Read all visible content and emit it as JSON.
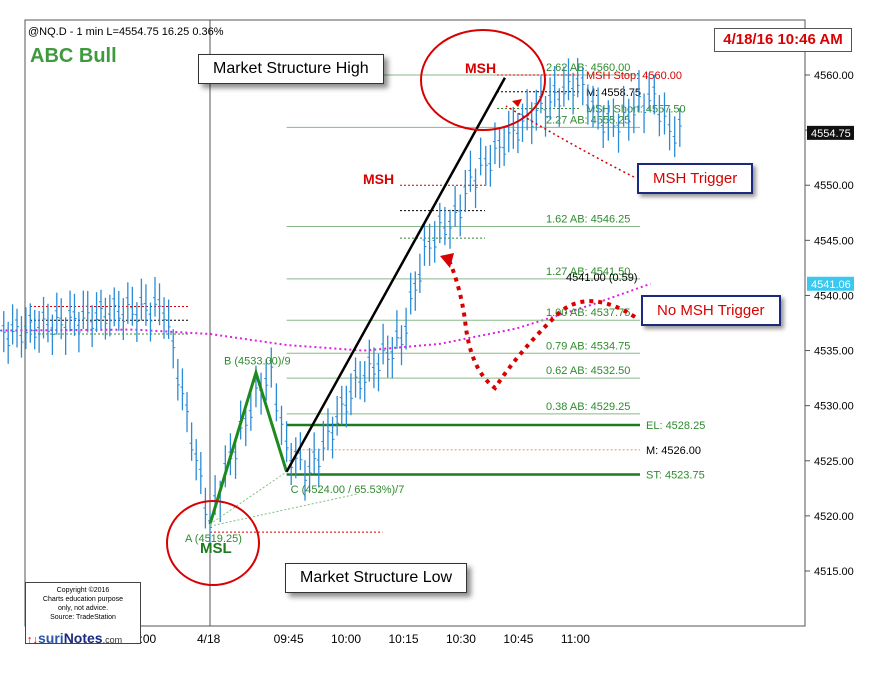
{
  "header": {
    "symbol_line": "@NQ.D - 1 min  L=4554.75  16.25   0.36%",
    "title": "ABC Bull",
    "date": "4/18/16 10:46 AM"
  },
  "callouts": {
    "msh_high": "Market Structure High",
    "msl_low": "Market Structure Low",
    "msh_trigger": "MSH Trigger",
    "no_msh_trigger": "No MSH Trigger"
  },
  "copyright": {
    "line1": "Copyright ©2016",
    "line2": "Charts education purpose",
    "line3": "only, not advice.",
    "line4": "Source: TradeStation",
    "logo_prefix": "suri",
    "logo_name": "Notes",
    "logo_suffix": ".com"
  },
  "colors": {
    "price_bar": "#2b8bd6",
    "green": "#2e8b2e",
    "red": "#d80000",
    "magenta": "#e020e0",
    "black": "#000000",
    "gray_line": "#8ab88a"
  },
  "chart_data": {
    "type": "line",
    "title": "ABC Bull",
    "ylim": [
      4511.0,
      4562.5
    ],
    "y_ticks": [
      4515.0,
      4520.0,
      4525.0,
      4530.0,
      4535.0,
      4540.0,
      4545.0,
      4550.0,
      4555.0,
      4560.0
    ],
    "y_tick_labels": [
      "4515.00",
      "4520.00",
      "4525.00",
      "4530.00",
      "4535.00",
      "4540.00",
      "4545.00",
      "4550.00",
      "4555.00",
      "4560.00"
    ],
    "x_tick_labels": [
      ":00",
      "4/18",
      "09:45",
      "10:00",
      "10:15",
      "10:30",
      "10:45",
      "11:00"
    ],
    "last_price": "4554.75",
    "ma_value": "4541.06",
    "price_series": {
      "name": "@NQ.D - 1 min",
      "x_minutes": [
        -90,
        -70,
        -55,
        -40,
        -25,
        -12,
        0,
        4,
        8,
        12,
        16,
        20,
        26,
        32,
        38,
        44,
        50,
        56,
        60,
        64,
        68,
        72,
        78,
        84,
        90,
        96,
        100,
        104,
        108,
        112,
        116,
        120,
        124
      ],
      "values": [
        4538.0,
        4537.0,
        4536.5,
        4537.5,
        4538.5,
        4539.0,
        4519.25,
        4524.0,
        4527.5,
        4531.0,
        4533.0,
        4526.0,
        4524.0,
        4528.0,
        4532.0,
        4534.0,
        4536.0,
        4544.0,
        4546.0,
        4547.0,
        4550.5,
        4552.0,
        4554.5,
        4556.5,
        4558.0,
        4559.5,
        4557.0,
        4555.5,
        4556.0,
        4557.5,
        4558.0,
        4555.0,
        4554.75
      ]
    },
    "moving_average": {
      "x_minutes": [
        -150,
        -100,
        -60,
        -20,
        0,
        20,
        40,
        60,
        80,
        100,
        115
      ],
      "values": [
        4536.0,
        4536.5,
        4536.8,
        4536.9,
        4536.5,
        4535.5,
        4535.0,
        4535.6,
        4537.0,
        4539.2,
        4541.06
      ]
    },
    "abc_points": [
      {
        "label": "A (4519.25)",
        "x": 0,
        "y": 4519.25
      },
      {
        "label": "B (4533.00)/9",
        "x": 12,
        "y": 4533.0
      },
      {
        "label": "C (4524.00 / 65.53%)/7",
        "x": 20,
        "y": 4524.0
      }
    ],
    "trend_line": {
      "from": {
        "x": 20,
        "y": 4524.0
      },
      "to": {
        "x": 77,
        "y": 4559.75
      }
    },
    "fib_levels": [
      {
        "label": "2.62 AB: 4560.00",
        "value": 4560.0
      },
      {
        "label": "2.27 AB: 4555.25",
        "value": 4555.25
      },
      {
        "label": "1.62 AB: 4546.25",
        "value": 4546.25
      },
      {
        "label": "1.27 AB: 4541.50",
        "value": 4541.5
      },
      {
        "label": "1.00 AB: 4537.75",
        "value": 4537.75
      },
      {
        "label": "0.79 AB: 4534.75",
        "value": 4534.75
      },
      {
        "label": "0.62 AB: 4532.50",
        "value": 4532.5
      },
      {
        "label": "0.38 AB: 4529.25",
        "value": 4529.25
      }
    ],
    "trade_levels": [
      {
        "label": "EL: 4528.25",
        "value": 4528.25
      },
      {
        "label": "M: 4526.00",
        "value": 4526.0
      },
      {
        "label": "ST: 4523.75",
        "value": 4523.75
      }
    ],
    "msh_levels": [
      {
        "label": "MSH Stop: 4560.00",
        "value": 4560.0
      },
      {
        "label": "M: 4558.75",
        "value": 4558.75
      },
      {
        "label": "MSH Short: 4557.50",
        "value": 4557.5
      }
    ],
    "aux_labels": {
      "msh_upper": "MSH",
      "msh_mid": "MSH",
      "msl": "MSL",
      "range_value": "4541.00 (0.59)"
    }
  }
}
